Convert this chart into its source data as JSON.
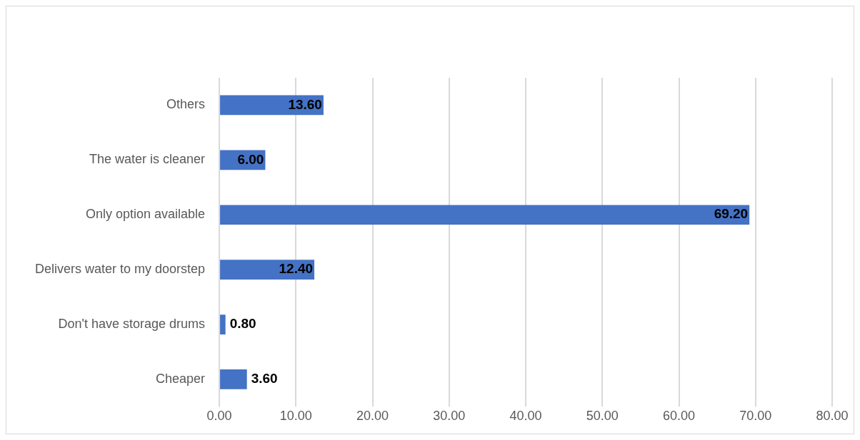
{
  "chart_data": {
    "type": "bar",
    "orientation": "horizontal",
    "categories": [
      "Others",
      "The water is cleaner",
      "Only option available",
      "Delivers water to my doorstep",
      "Don't have storage drums",
      "Cheaper"
    ],
    "values": [
      13.6,
      6.0,
      69.2,
      12.4,
      0.8,
      3.6
    ],
    "value_labels": [
      "13.60",
      "6.00",
      "69.20",
      "12.40",
      "0.80",
      "3.60"
    ],
    "color": "#4472c4",
    "xlim": [
      0,
      80
    ],
    "xticks": [
      {
        "value": 0,
        "label": "0.00"
      },
      {
        "value": 10,
        "label": "10.00"
      },
      {
        "value": 20,
        "label": "20.00"
      },
      {
        "value": 30,
        "label": "30.00"
      },
      {
        "value": 40,
        "label": "40.00"
      },
      {
        "value": 50,
        "label": "50.00"
      },
      {
        "value": 60,
        "label": "60.00"
      },
      {
        "value": 70,
        "label": "70.00"
      },
      {
        "value": 80,
        "label": "80.00"
      }
    ],
    "grid": "x",
    "legend": false
  }
}
